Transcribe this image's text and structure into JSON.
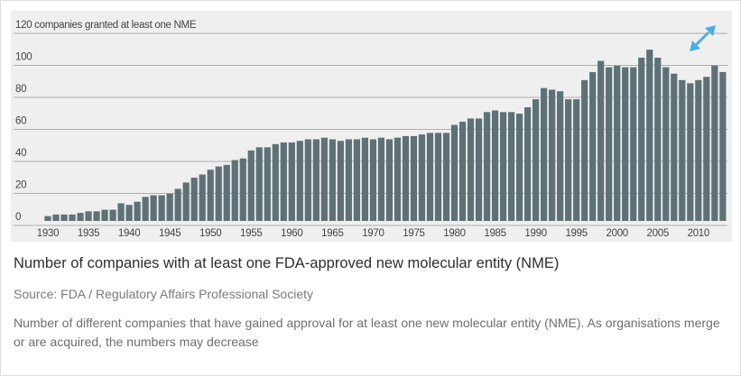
{
  "chart_data": {
    "type": "bar",
    "title": "Number of companies with at least one FDA-approved new molecular entity (NME)",
    "source": "Source: FDA / Regulatory Affairs Professional Society",
    "description": "Number of different companies that have gained approval for at least one new molecular entity (NME). As organisations merge or are acquired, the numbers may decrease",
    "categories": [
      "1930",
      null,
      null,
      null,
      null,
      "1935",
      null,
      null,
      null,
      null,
      "1940",
      null,
      null,
      null,
      null,
      "1945",
      null,
      null,
      null,
      null,
      "1950",
      null,
      null,
      null,
      null,
      "1955",
      null,
      null,
      null,
      null,
      "1960",
      null,
      null,
      null,
      null,
      "1965",
      null,
      null,
      null,
      null,
      "1970",
      null,
      null,
      null,
      null,
      "1975",
      null,
      null,
      null,
      null,
      "1980",
      null,
      null,
      null,
      null,
      "1985",
      null,
      null,
      null,
      null,
      "1990",
      null,
      null,
      null,
      null,
      "1995",
      null,
      null,
      null,
      null,
      "2000",
      null,
      null,
      null,
      null,
      "2005",
      null,
      null,
      null,
      null,
      "2010",
      null,
      null,
      null
    ],
    "values": [
      3,
      4,
      4,
      4,
      5,
      6,
      6,
      7,
      7,
      11,
      10,
      12,
      15,
      16,
      16,
      17,
      20,
      24,
      27,
      29,
      32,
      34,
      35,
      38,
      39,
      44,
      46,
      46,
      48,
      49,
      49,
      50,
      51,
      51,
      52,
      51,
      50,
      51,
      51,
      52,
      51,
      52,
      51,
      52,
      53,
      53,
      54,
      55,
      55,
      55,
      60,
      62,
      64,
      64,
      68,
      69,
      68,
      68,
      67,
      71,
      76,
      83,
      82,
      81,
      76,
      76,
      88,
      93,
      100,
      96,
      97,
      96,
      96,
      102,
      107,
      102,
      96,
      92,
      88,
      86,
      88,
      90,
      97,
      93
    ],
    "color": "#5e7176",
    "ylim": [
      0,
      120
    ],
    "yticks": [
      0,
      20,
      40,
      60,
      80,
      100,
      {
        "value": 120,
        "label": "120 companies granted at least one NME"
      }
    ],
    "grid": true
  }
}
